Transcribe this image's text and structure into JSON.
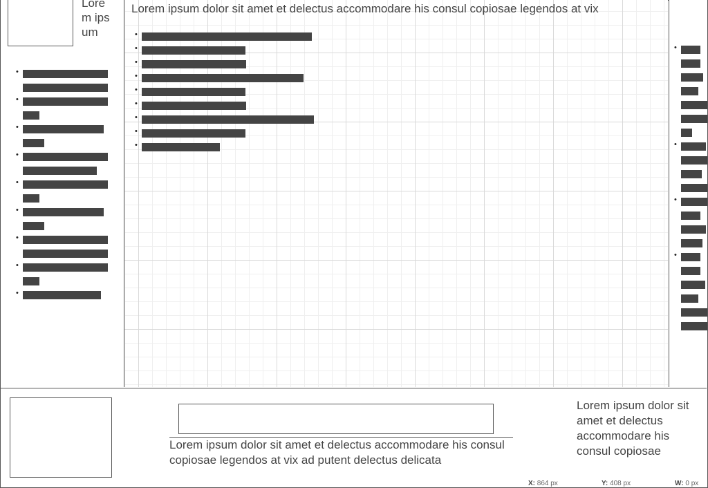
{
  "left_panel": {
    "title": "Lorem ipsum",
    "items": [
      {
        "bars": [
          123,
          123
        ]
      },
      {
        "bars": [
          123,
          24
        ]
      },
      {
        "bars": [
          117,
          31
        ]
      },
      {
        "bars": [
          123,
          107
        ]
      },
      {
        "bars": [
          123,
          24
        ]
      },
      {
        "bars": [
          117,
          31
        ]
      },
      {
        "bars": [
          123,
          123
        ]
      },
      {
        "bars": [
          123,
          24
        ]
      },
      {
        "bars": [
          113
        ]
      }
    ]
  },
  "main": {
    "title": "Lorem ipsum dolor sit amet et delectus accommodare his consul copiosae legendos at vix",
    "items": [
      {
        "bars": [
          246
        ]
      },
      {
        "bars": [
          150
        ]
      },
      {
        "bars": [
          151
        ]
      },
      {
        "bars": [
          234
        ]
      },
      {
        "bars": [
          150
        ]
      },
      {
        "bars": [
          151
        ]
      },
      {
        "bars": [
          249
        ]
      },
      {
        "bars": [
          150
        ]
      },
      {
        "bars": [
          113
        ]
      }
    ]
  },
  "right_panel": {
    "items": [
      {
        "bars": [
          28,
          28,
          32,
          25,
          38,
          38,
          16
        ]
      },
      {
        "bars": [
          36,
          38,
          30,
          38
        ]
      },
      {
        "bars": [
          38,
          28,
          36,
          31
        ]
      },
      {
        "bars": [
          28,
          28,
          35,
          25,
          38,
          38
        ]
      }
    ]
  },
  "bottom": {
    "input_value": "",
    "caption": "Lorem ipsum dolor sit amet et delectus accommodare his consul copiosae legendos at vix ad putent delectus delicata",
    "side_text": "Lorem ipsum dolor sit amet et delectus accommodare his consul copiosae"
  },
  "readout": {
    "x_label": "X:",
    "x_value": "864 px",
    "y_label": "Y:",
    "y_value": "408 px",
    "w_label": "W:",
    "w_value": "0 px"
  }
}
